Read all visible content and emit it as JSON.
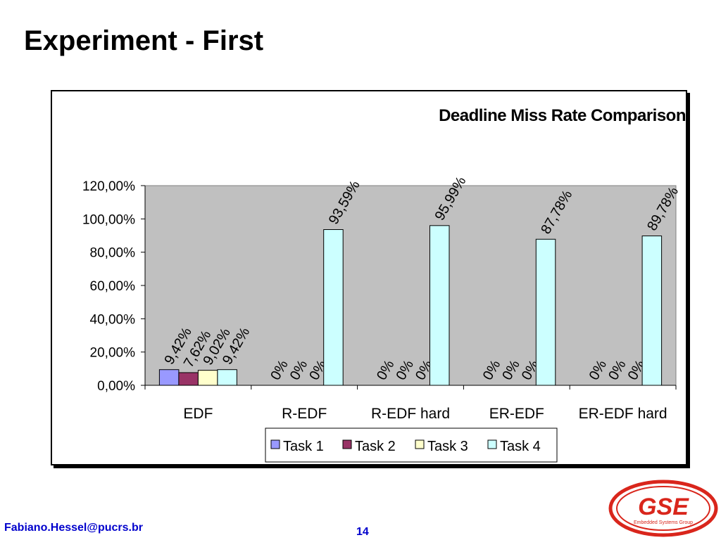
{
  "slide": {
    "title": "Experiment - First",
    "footer_email": "Fabiano.Hessel@pucrs.br",
    "page_number": "14"
  },
  "logo": {
    "icon": "gse-logo-icon",
    "text": "GSE",
    "subtext": "Embedded Systems Group",
    "color": "#d9261c"
  },
  "chart_data": {
    "type": "bar",
    "title": "Deadline Miss Rate Comparison",
    "xlabel": "",
    "ylabel": "",
    "categories": [
      "EDF",
      "R-EDF",
      "R-EDF hard",
      "ER-EDF",
      "ER-EDF hard"
    ],
    "ylim": [
      0,
      120
    ],
    "yticks": [
      0,
      20,
      40,
      60,
      80,
      100,
      120
    ],
    "ytick_labels": [
      "0,00%",
      "20,00%",
      "40,00%",
      "60,00%",
      "80,00%",
      "100,00%",
      "120,00%"
    ],
    "grid": false,
    "plot_background": "#c0c0c0",
    "legend_position": "bottom",
    "series": [
      {
        "name": "Task 1",
        "color": "#9999ff",
        "values": [
          9.42,
          0,
          0,
          0,
          0
        ],
        "labels": [
          "9,42%",
          "0%",
          "0%",
          "0%",
          "0%"
        ]
      },
      {
        "name": "Task 2",
        "color": "#993366",
        "values": [
          7.62,
          0,
          0,
          0,
          0
        ],
        "labels": [
          "7,62%",
          "0%",
          "0%",
          "0%",
          "0%"
        ]
      },
      {
        "name": "Task 3",
        "color": "#ffffcc",
        "values": [
          9.02,
          0,
          0,
          0,
          0
        ],
        "labels": [
          "9,02%",
          "0%",
          "0%",
          "0%",
          "0%"
        ]
      },
      {
        "name": "Task 4",
        "color": "#ccffff",
        "values": [
          9.42,
          93.59,
          95.99,
          87.78,
          89.78
        ],
        "labels": [
          "9,42%",
          "93,59%",
          "95,99%",
          "87,78%",
          "89,78%"
        ]
      }
    ]
  }
}
